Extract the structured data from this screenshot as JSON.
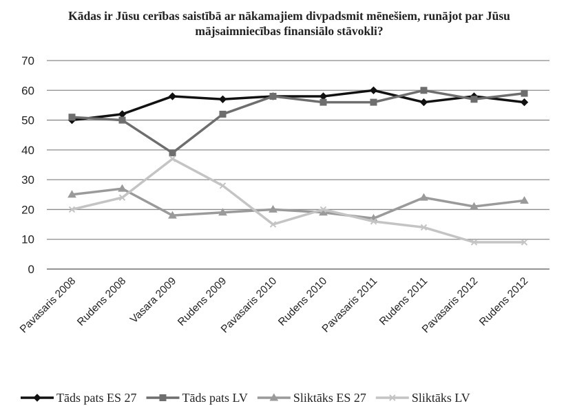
{
  "chart_data": {
    "type": "line",
    "title": "Kādas ir Jūsu cerības saistībā ar nākamajiem divpadsmit mēnešiem, runājot par Jūsu mājsaimniecības finansiālo stāvokli?",
    "categories": [
      "Pavasaris 2008",
      "Rudens 2008",
      "Vasara 2009",
      "Rudens 2009",
      "Pavasaris 2010",
      "Rudens 2010",
      "Pavasaris 2011",
      "Rudens 2011",
      "Pavasaris 2012",
      "Rudens 2012"
    ],
    "series": [
      {
        "name": "Tāds pats ES 27",
        "color": "#111111",
        "marker": "diamond",
        "values": [
          50,
          52,
          58,
          57,
          58,
          58,
          60,
          56,
          58,
          56
        ]
      },
      {
        "name": "Tāds pats LV",
        "color": "#6e6e6e",
        "marker": "square",
        "values": [
          51,
          50,
          39,
          52,
          58,
          56,
          56,
          60,
          57,
          59
        ]
      },
      {
        "name": "Sliktāks ES 27",
        "color": "#9a9a9a",
        "marker": "triangle",
        "values": [
          25,
          27,
          18,
          19,
          20,
          19,
          17,
          24,
          21,
          23
        ]
      },
      {
        "name": "Sliktāks LV",
        "color": "#c4c4c4",
        "marker": "x",
        "values": [
          20,
          24,
          37,
          28,
          15,
          20,
          16,
          14,
          9,
          9
        ]
      }
    ],
    "ylim": [
      0,
      70
    ],
    "yticks": [
      0,
      10,
      20,
      30,
      40,
      50,
      60,
      70
    ],
    "grid": true,
    "legend": "bottom"
  }
}
